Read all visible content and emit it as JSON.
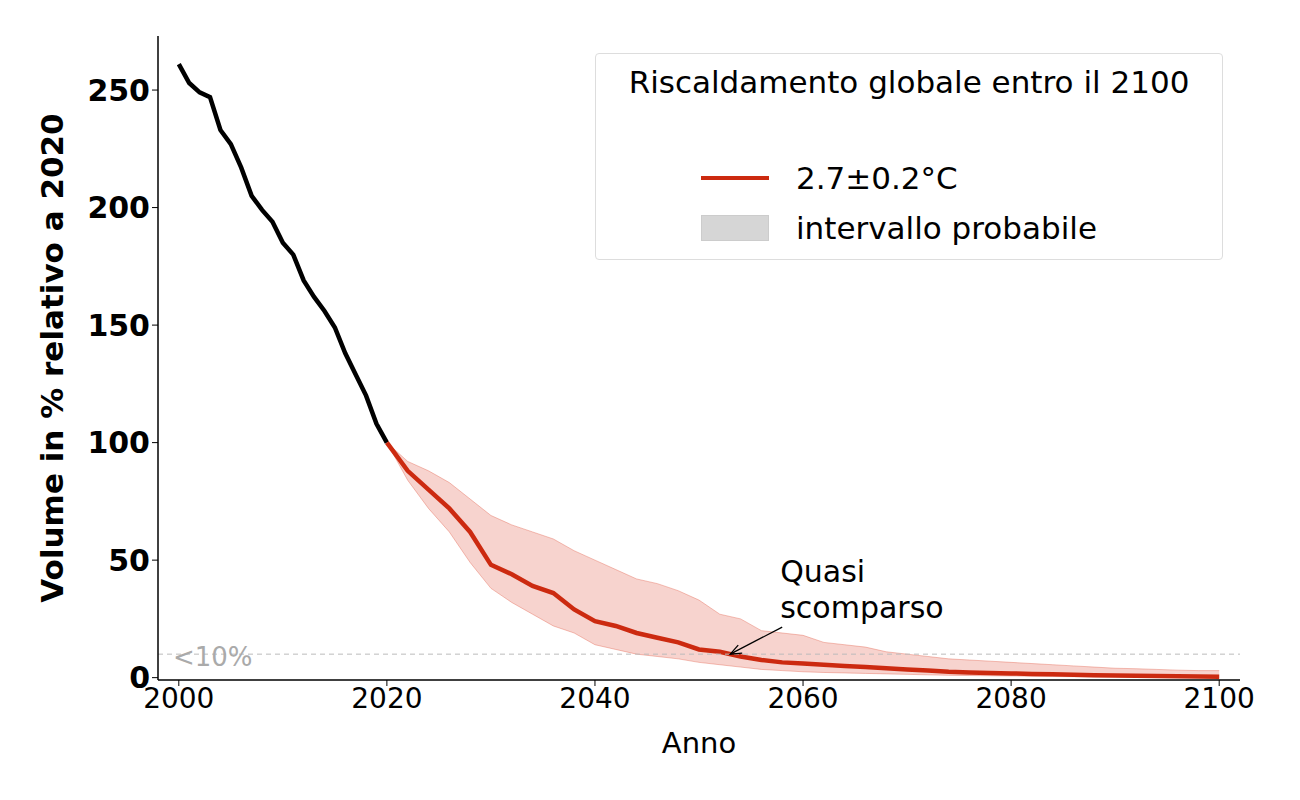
{
  "chart_data": {
    "type": "line",
    "x_label": "Anno",
    "y_label": "Volume in % relativo a 2020",
    "legend": "upper right",
    "legend_title": "Riscaldamento globale entro il 2100",
    "xlim": [
      1998,
      2102
    ],
    "xticks": [
      2000,
      2020,
      2040,
      2060,
      2080,
      2100
    ],
    "ylim": [
      -1,
      273
    ],
    "yticks": [
      0,
      50,
      100,
      150,
      200,
      250
    ],
    "grid": false,
    "x": [
      2000,
      2001,
      2002,
      2003,
      2004,
      2005,
      2006,
      2007,
      2008,
      2009,
      2010,
      2011,
      2012,
      2013,
      2014,
      2015,
      2016,
      2017,
      2018,
      2019,
      2020,
      2022,
      2024,
      2026,
      2028,
      2030,
      2032,
      2034,
      2036,
      2038,
      2040,
      2042,
      2044,
      2046,
      2048,
      2050,
      2052,
      2054,
      2056,
      2058,
      2060,
      2062,
      2064,
      2066,
      2068,
      2070,
      2072,
      2074,
      2076,
      2078,
      2080,
      2082,
      2084,
      2086,
      2088,
      2090,
      2092,
      2094,
      2096,
      2098,
      2100
    ],
    "series": [
      {
        "color": "#000000",
        "values": [
          261,
          253,
          249,
          247,
          233,
          227,
          217,
          205,
          199,
          194,
          185,
          180,
          169,
          162,
          156,
          149,
          138,
          129,
          120,
          108,
          100,
          null,
          null,
          null,
          null,
          null,
          null,
          null,
          null,
          null,
          null,
          null,
          null,
          null,
          null,
          null,
          null,
          null,
          null,
          null,
          null,
          null,
          null,
          null,
          null,
          null,
          null,
          null,
          null,
          null,
          null,
          null,
          null,
          null,
          null,
          null,
          null,
          null,
          null,
          null,
          null
        ]
      },
      {
        "name": "2.7±0.2°C",
        "color": "#cc2a10",
        "values": [
          null,
          null,
          null,
          null,
          null,
          null,
          null,
          null,
          null,
          null,
          null,
          null,
          null,
          null,
          null,
          null,
          null,
          null,
          null,
          null,
          100,
          88,
          80,
          72,
          62,
          48,
          44,
          39,
          36,
          29,
          24,
          22,
          19,
          17,
          15,
          12,
          11,
          9,
          7.5,
          6.5,
          6,
          5.5,
          5,
          4.5,
          4,
          3.5,
          3,
          2.5,
          2.2,
          2,
          1.8,
          1.6,
          1.4,
          1.2,
          1,
          0.9,
          0.8,
          0.7,
          0.6,
          0.5,
          0.4
        ]
      }
    ],
    "band": {
      "name": "intervallo probabile",
      "color": "#e0503a",
      "lower": [
        null,
        null,
        null,
        null,
        null,
        null,
        null,
        null,
        null,
        null,
        null,
        null,
        null,
        null,
        null,
        null,
        null,
        null,
        null,
        null,
        100,
        84,
        72,
        62,
        49,
        38,
        32,
        27,
        22,
        19,
        14,
        12,
        10,
        9,
        8,
        6.5,
        5.5,
        4.5,
        3.5,
        3,
        2.5,
        2.2,
        2,
        1.8,
        1.6,
        1.4,
        1.2,
        1,
        0.9,
        0.8,
        0.7,
        0.6,
        0.5,
        0.4,
        0.3,
        0.3,
        0.2,
        0.2,
        0.1,
        0.1,
        0.1
      ],
      "upper": [
        null,
        null,
        null,
        null,
        null,
        null,
        null,
        null,
        null,
        null,
        null,
        null,
        null,
        null,
        null,
        null,
        null,
        null,
        null,
        null,
        100,
        92,
        88,
        83,
        76,
        69,
        65,
        62,
        59,
        54,
        50,
        46,
        42,
        40,
        37,
        33,
        27,
        25,
        20,
        19,
        18,
        15,
        14,
        13,
        11,
        10,
        9,
        8,
        7.5,
        7,
        6.5,
        6,
        5.5,
        5,
        4.5,
        4,
        3.8,
        3.5,
        3.2,
        3,
        3
      ]
    },
    "hlines": [
      {
        "y": 10,
        "label": "<10%",
        "line_style": "dashed"
      }
    ],
    "annotations": [
      {
        "text": "Quasi\nscomparso",
        "x": 2053,
        "y": 10
      }
    ]
  }
}
